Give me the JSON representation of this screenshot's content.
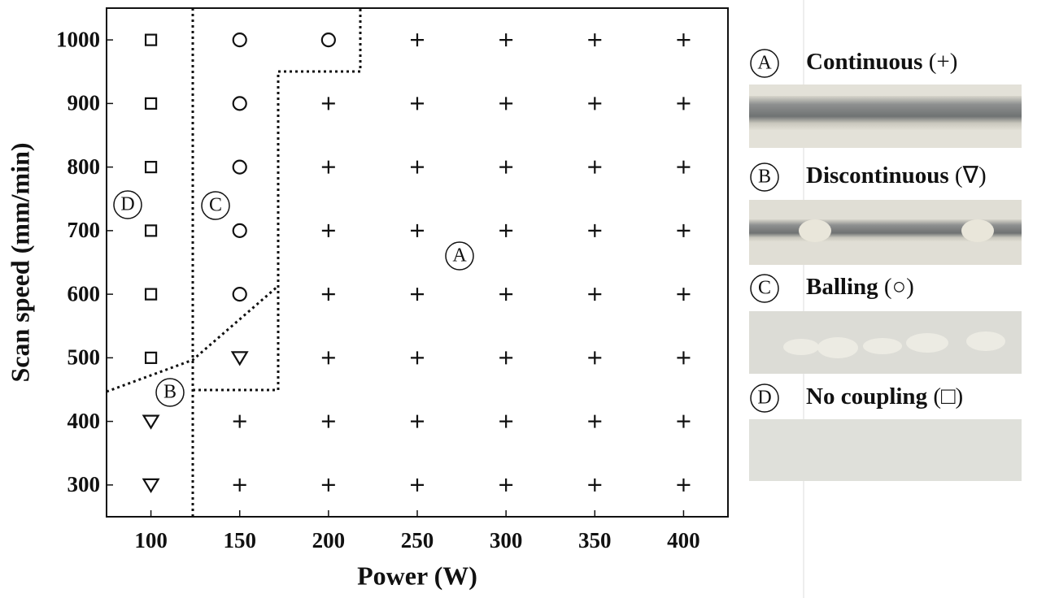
{
  "chart_data": {
    "type": "scatter",
    "x_label": "Power (W)",
    "y_label": "Scan speed (mm/min)",
    "xlim": [
      75,
      425
    ],
    "xticks": [
      100,
      150,
      200,
      250,
      300,
      350,
      400
    ],
    "ylim": [
      250,
      1050
    ],
    "yticks": [
      300,
      400,
      500,
      600,
      700,
      800,
      900,
      1000
    ],
    "series": [
      {
        "name": "Continuous",
        "symbol": "(+)",
        "letter": "A",
        "marker": "plus",
        "color": "#111111",
        "x": [
          150,
          150,
          200,
          200,
          200,
          200,
          200,
          200,
          200,
          250,
          250,
          250,
          250,
          250,
          250,
          250,
          250,
          300,
          300,
          300,
          300,
          300,
          300,
          300,
          300,
          350,
          350,
          350,
          350,
          350,
          350,
          350,
          350,
          400,
          400,
          400,
          400,
          400,
          400,
          400,
          400
        ],
        "y": [
          300,
          400,
          300,
          400,
          500,
          600,
          700,
          800,
          900,
          300,
          400,
          500,
          600,
          700,
          800,
          900,
          1000,
          300,
          400,
          500,
          600,
          700,
          800,
          900,
          1000,
          300,
          400,
          500,
          600,
          700,
          800,
          900,
          1000,
          300,
          400,
          500,
          600,
          700,
          800,
          900,
          1000
        ]
      },
      {
        "name": "Discontinuous",
        "symbol": "(∇)",
        "letter": "B",
        "marker": "triangle",
        "color": "#111111",
        "x": [
          100,
          100,
          150
        ],
        "y": [
          300,
          400,
          500
        ]
      },
      {
        "name": "Balling",
        "symbol": "(○)",
        "letter": "C",
        "marker": "circle",
        "color": "#111111",
        "x": [
          150,
          150,
          150,
          150,
          150,
          200
        ],
        "y": [
          600,
          700,
          800,
          900,
          1000,
          1000
        ]
      },
      {
        "name": "No coupling",
        "symbol": "(□)",
        "letter": "D",
        "marker": "square",
        "color": "#111111",
        "x": [
          100,
          100,
          100,
          100,
          100,
          100
        ],
        "y": [
          500,
          600,
          700,
          800,
          900,
          1000
        ]
      }
    ]
  }
}
